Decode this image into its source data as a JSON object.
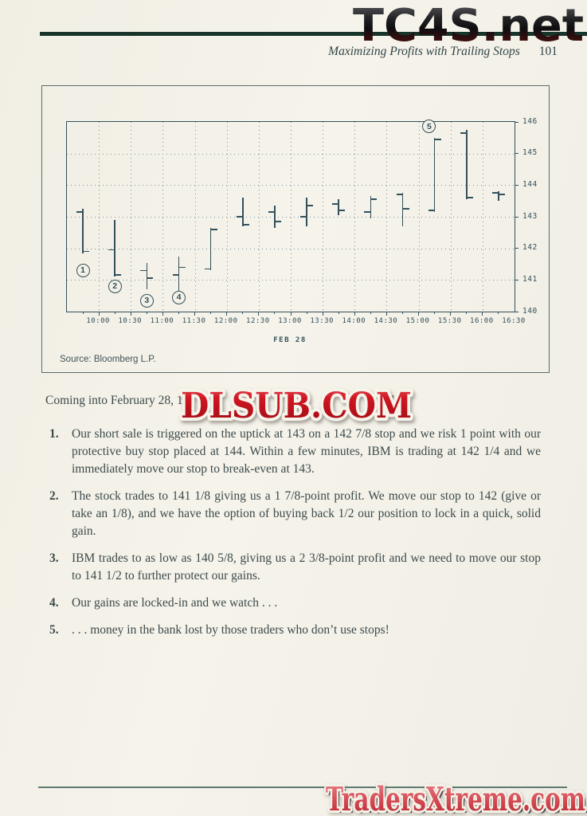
{
  "page": {
    "header": {
      "running_title": "Maximizing Profits with Trailing Stops",
      "page_number": "101"
    },
    "watermarks": {
      "top": "TC4S.net",
      "middle": "DLSUB.COM",
      "bottom": "TradersXtreme.com"
    },
    "intro": {
      "before": "Coming into February 28, 1",
      "after": "M."
    },
    "list": [
      {
        "num": "1.",
        "text": "Our short sale is triggered on the uptick at 143 on a 142 7/8 stop and we risk 1 point with our protective buy stop placed at 144. Within a few minutes, IBM is trading at 142 1/4 and we immediately move our stop to break-even at 143."
      },
      {
        "num": "2.",
        "text": "The stock trades to 141 1/8 giving us a 1 7/8-point profit. We move our stop to 142 (give or take an 1/8), and we have the option of buying back 1/2 our position to lock in a quick, solid gain."
      },
      {
        "num": "3.",
        "text": "IBM trades to as low as 140 5/8, giving us a 2 3/8-point profit and we need to move our stop to 141 1/2 to further protect our gains."
      },
      {
        "num": "4.",
        "text": "Our gains are locked-in and we watch . . ."
      },
      {
        "num": "5.",
        "text": ". . . money in the bank lost by those traders who don’t use stops!"
      }
    ]
  },
  "chart_data": {
    "type": "bar",
    "subtype": "ohlc_intraday_half_hour_bars",
    "title": "",
    "date_label": "FEB 28",
    "source": "Source: Bloomberg L.P.",
    "grid": "dotted",
    "legend": "none",
    "x_range_hours": [
      9.5,
      16.5
    ],
    "x_tick_labels": [
      "10:00",
      "10:30",
      "11:00",
      "11:30",
      "12:00",
      "12:30",
      "13:00",
      "13:30",
      "14:00",
      "14:30",
      "15:00",
      "15:30",
      "16:00",
      "16:30"
    ],
    "y_ticks": [
      140,
      141,
      142,
      143,
      144,
      145,
      146
    ],
    "y_range": [
      140,
      146
    ],
    "bars": [
      {
        "time": "09:45",
        "open": 143.15,
        "high": 143.25,
        "low": 141.85,
        "close": 141.9
      },
      {
        "time": "10:15",
        "open": 141.95,
        "high": 142.9,
        "low": 141.1,
        "close": 141.15
      },
      {
        "time": "10:45",
        "open": 141.3,
        "high": 141.55,
        "low": 140.7,
        "close": 141.05
      },
      {
        "time": "11:15",
        "open": 141.15,
        "high": 141.75,
        "low": 140.65,
        "close": 141.4
      },
      {
        "time": "11:45",
        "open": 141.35,
        "high": 142.65,
        "low": 141.3,
        "close": 142.6
      },
      {
        "time": "12:15",
        "open": 143.0,
        "high": 143.6,
        "low": 142.7,
        "close": 142.75
      },
      {
        "time": "12:45",
        "open": 143.15,
        "high": 143.35,
        "low": 142.65,
        "close": 142.85
      },
      {
        "time": "13:15",
        "open": 143.0,
        "high": 143.6,
        "low": 142.7,
        "close": 143.35
      },
      {
        "time": "13:45",
        "open": 143.4,
        "high": 143.55,
        "low": 143.05,
        "close": 143.2
      },
      {
        "time": "14:15",
        "open": 143.15,
        "high": 143.65,
        "low": 142.95,
        "close": 143.55
      },
      {
        "time": "14:45",
        "open": 143.7,
        "high": 143.75,
        "low": 142.7,
        "close": 143.25
      },
      {
        "time": "15:15",
        "open": 143.2,
        "high": 145.5,
        "low": 143.15,
        "close": 145.45
      },
      {
        "time": "15:45",
        "open": 145.65,
        "high": 145.75,
        "low": 143.55,
        "close": 143.6
      },
      {
        "time": "16:15",
        "open": 143.75,
        "high": 143.8,
        "low": 143.5,
        "close": 143.7
      }
    ],
    "annotations": [
      {
        "label": "1",
        "time": "09:45",
        "value": 141.3
      },
      {
        "label": "2",
        "time": "10:15",
        "value": 140.8
      },
      {
        "label": "3",
        "time": "10:45",
        "value": 140.35
      },
      {
        "label": "4",
        "time": "11:15",
        "value": 140.45
      },
      {
        "label": "5",
        "time": "15:10",
        "value": 145.85
      }
    ]
  },
  "colors": {
    "paper": "#f3f1e8",
    "chart_ink": "#33515c",
    "grid_dots": "#7d929c",
    "body_text": "#3c4a4c",
    "header_rule_green": "#17352b",
    "watermark_red": "#c8101e",
    "watermark_pink": "#d8525b"
  }
}
